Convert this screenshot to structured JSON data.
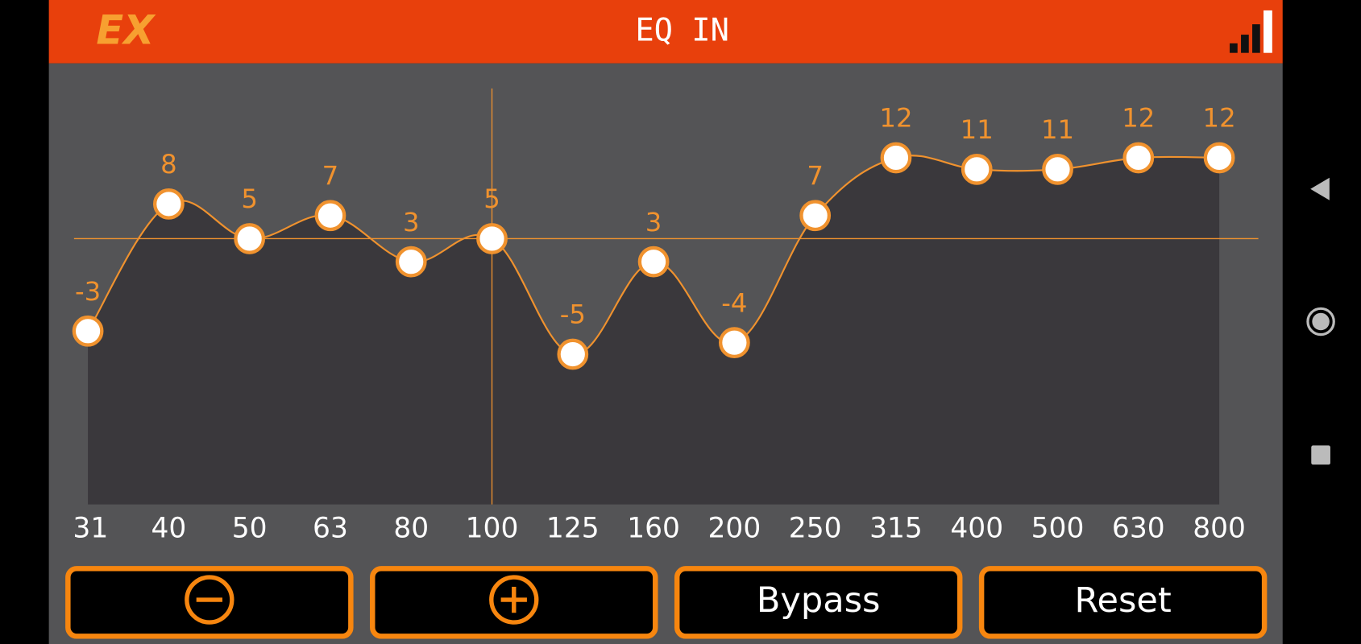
{
  "header": {
    "logo": "EX",
    "title": "EQ IN"
  },
  "chart_data": {
    "type": "line",
    "categories": [
      "31",
      "40",
      "50",
      "63",
      "80",
      "100",
      "125",
      "160",
      "200",
      "250",
      "315",
      "400",
      "500",
      "630",
      "800"
    ],
    "values": [
      -3,
      8,
      5,
      7,
      3,
      5,
      -5,
      3,
      -4,
      7,
      12,
      11,
      11,
      12,
      12
    ],
    "ylim": [
      -18,
      18
    ],
    "selected_index": 5,
    "color": "#f0922e"
  },
  "buttons": {
    "bypass": "Bypass",
    "reset": "Reset"
  }
}
